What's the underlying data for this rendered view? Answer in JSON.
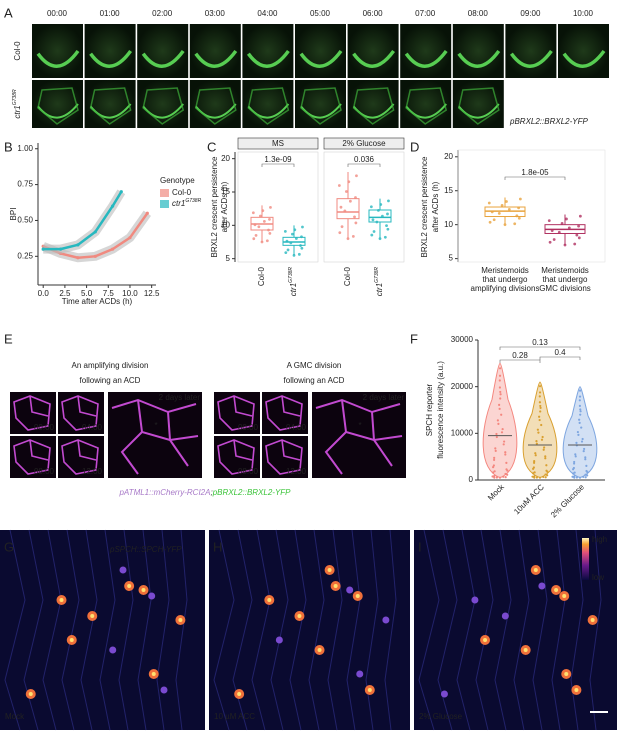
{
  "panels": {
    "A": {
      "label": "A",
      "times": [
        "00:00",
        "01:00",
        "02:00",
        "03:00",
        "04:00",
        "05:00",
        "06:00",
        "07:00",
        "08:00",
        "09:00",
        "10:00"
      ],
      "rows": [
        {
          "name": "Col-0"
        },
        {
          "name": "ctr1",
          "sup": "G738R"
        }
      ],
      "reporter": "pBRXL2::BRXL2-YFP"
    },
    "B": {
      "label": "B",
      "type": "line",
      "ylabel": "BPI",
      "xlabel": "Time after ACDs (h)",
      "xlim": [
        -0.6,
        13
      ],
      "ylim": [
        0.05,
        1.04
      ],
      "yticks": [
        0.25,
        {
          "value": 0.5,
          "label": "0.50"
        },
        0.75,
        {
          "value": 1,
          "label": "1.00"
        }
      ],
      "xticks": [
        {
          "value": 0,
          "label": "0.0"
        },
        2.5,
        {
          "value": 5,
          "label": "5.0"
        },
        7.5,
        {
          "value": 10,
          "label": "10.0"
        },
        12.5
      ],
      "legend_title": "Genotype",
      "series": [
        {
          "name": "Col-0",
          "color": "#f08a80",
          "x": [
            0,
            2,
            4,
            6,
            8,
            10,
            12
          ],
          "values": [
            0.32,
            0.27,
            0.24,
            0.25,
            0.3,
            0.38,
            0.55
          ]
        },
        {
          "name": "ctr1",
          "sup": "G738R",
          "color": "#27b8bf",
          "x": [
            0,
            2,
            4,
            6,
            8,
            9
          ],
          "values": [
            0.3,
            0.3,
            0.33,
            0.42,
            0.6,
            0.7
          ]
        }
      ]
    },
    "C": {
      "label": "C",
      "type": "box",
      "ylabel": [
        "BRXL2 crescent persistence",
        "after ACDs (h)"
      ],
      "ylim": [
        4.5,
        21
      ],
      "yticks": [
        5,
        10,
        15,
        20
      ],
      "facets": [
        {
          "name": "MS",
          "pvalue": "1.3e-09",
          "boxes": [
            {
              "category": "Col-0",
              "color": "#f08a80",
              "whislo": 7.5,
              "q1": 9.3,
              "med": 10.2,
              "q3": 11.2,
              "whishi": 13
            },
            {
              "category": "ctr1",
              "sup": "G738R",
              "color": "#27b8bf",
              "whislo": 5.5,
              "q1": 7,
              "med": 7.5,
              "q3": 8.2,
              "whishi": 10
            }
          ]
        },
        {
          "name": "2% Glucose",
          "pvalue": "0.036",
          "boxes": [
            {
              "category": "Col-0",
              "color": "#f08a80",
              "whislo": 8,
              "q1": 11,
              "med": 12,
              "q3": 14,
              "whishi": 18
            },
            {
              "category": "ctr1",
              "sup": "G738R",
              "color": "#27b8bf",
              "whislo": 8,
              "q1": 10.5,
              "med": 11.2,
              "q3": 12.3,
              "whishi": 14
            }
          ]
        }
      ]
    },
    "D": {
      "label": "D",
      "type": "box",
      "ylabel": [
        "BRXL2 crescent persistence",
        "after ACDs (h)"
      ],
      "ylim": [
        4.5,
        21
      ],
      "yticks": [
        5,
        10,
        15,
        20
      ],
      "pvalue": "1.8e-05",
      "boxes": [
        {
          "category": [
            "Meristemoids",
            "that undergo",
            "amplifying divisions"
          ],
          "color": "#e8a33d",
          "whislo": 10,
          "q1": 11.2,
          "med": 12,
          "q3": 12.6,
          "whishi": 14
        },
        {
          "category": [
            "Meristemoids",
            "that undergo",
            "GMC divisions"
          ],
          "color": "#b03060",
          "whislo": 7,
          "q1": 8.7,
          "med": 9.3,
          "q3": 10,
          "whishi": 11.5
        }
      ]
    },
    "E": {
      "label": "E",
      "groups": [
        {
          "title": [
            "An amplifying division",
            "following an ACD"
          ],
          "times": [
            "00:00",
            "04:00",
            "08:00",
            "12:00"
          ],
          "later": "2 days later"
        },
        {
          "title": [
            "A GMC division",
            "following an ACD"
          ],
          "times": [
            "00:00",
            "04:00",
            "08:00",
            "12:00"
          ],
          "later": "2 days later"
        }
      ],
      "reporter": [
        "pATML1::mCherry-RCI2A",
        ";",
        "pBRXL2::BRXL2-YFP"
      ]
    },
    "F": {
      "label": "F",
      "type": "violin",
      "ylabel": [
        "SPCH reporter",
        "fluorescence intensity (a.u.)"
      ],
      "ylim": [
        0,
        30000
      ],
      "yticks": [
        0,
        10000,
        20000,
        30000
      ],
      "violins": [
        {
          "category": "Mock",
          "color": "#f4877f",
          "min": 500,
          "median": 9500,
          "max": 25000
        },
        {
          "category": "10uM ACC",
          "color": "#d9a030",
          "min": 500,
          "median": 7500,
          "max": 21000
        },
        {
          "category": "2% Glucose",
          "color": "#7ea6e0",
          "min": 500,
          "median": 7500,
          "max": 20000
        }
      ],
      "pvalues": [
        "0.28",
        "0.13",
        "0.4"
      ]
    },
    "GHI": {
      "reporter": "pSPCH::SPCH-YFP",
      "scale": [
        "high",
        "low"
      ],
      "images": [
        {
          "label": "G",
          "condition": "Mock"
        },
        {
          "label": "H",
          "condition": "10 µM ACC"
        },
        {
          "label": "I",
          "condition": "2% Glucose"
        }
      ]
    }
  }
}
